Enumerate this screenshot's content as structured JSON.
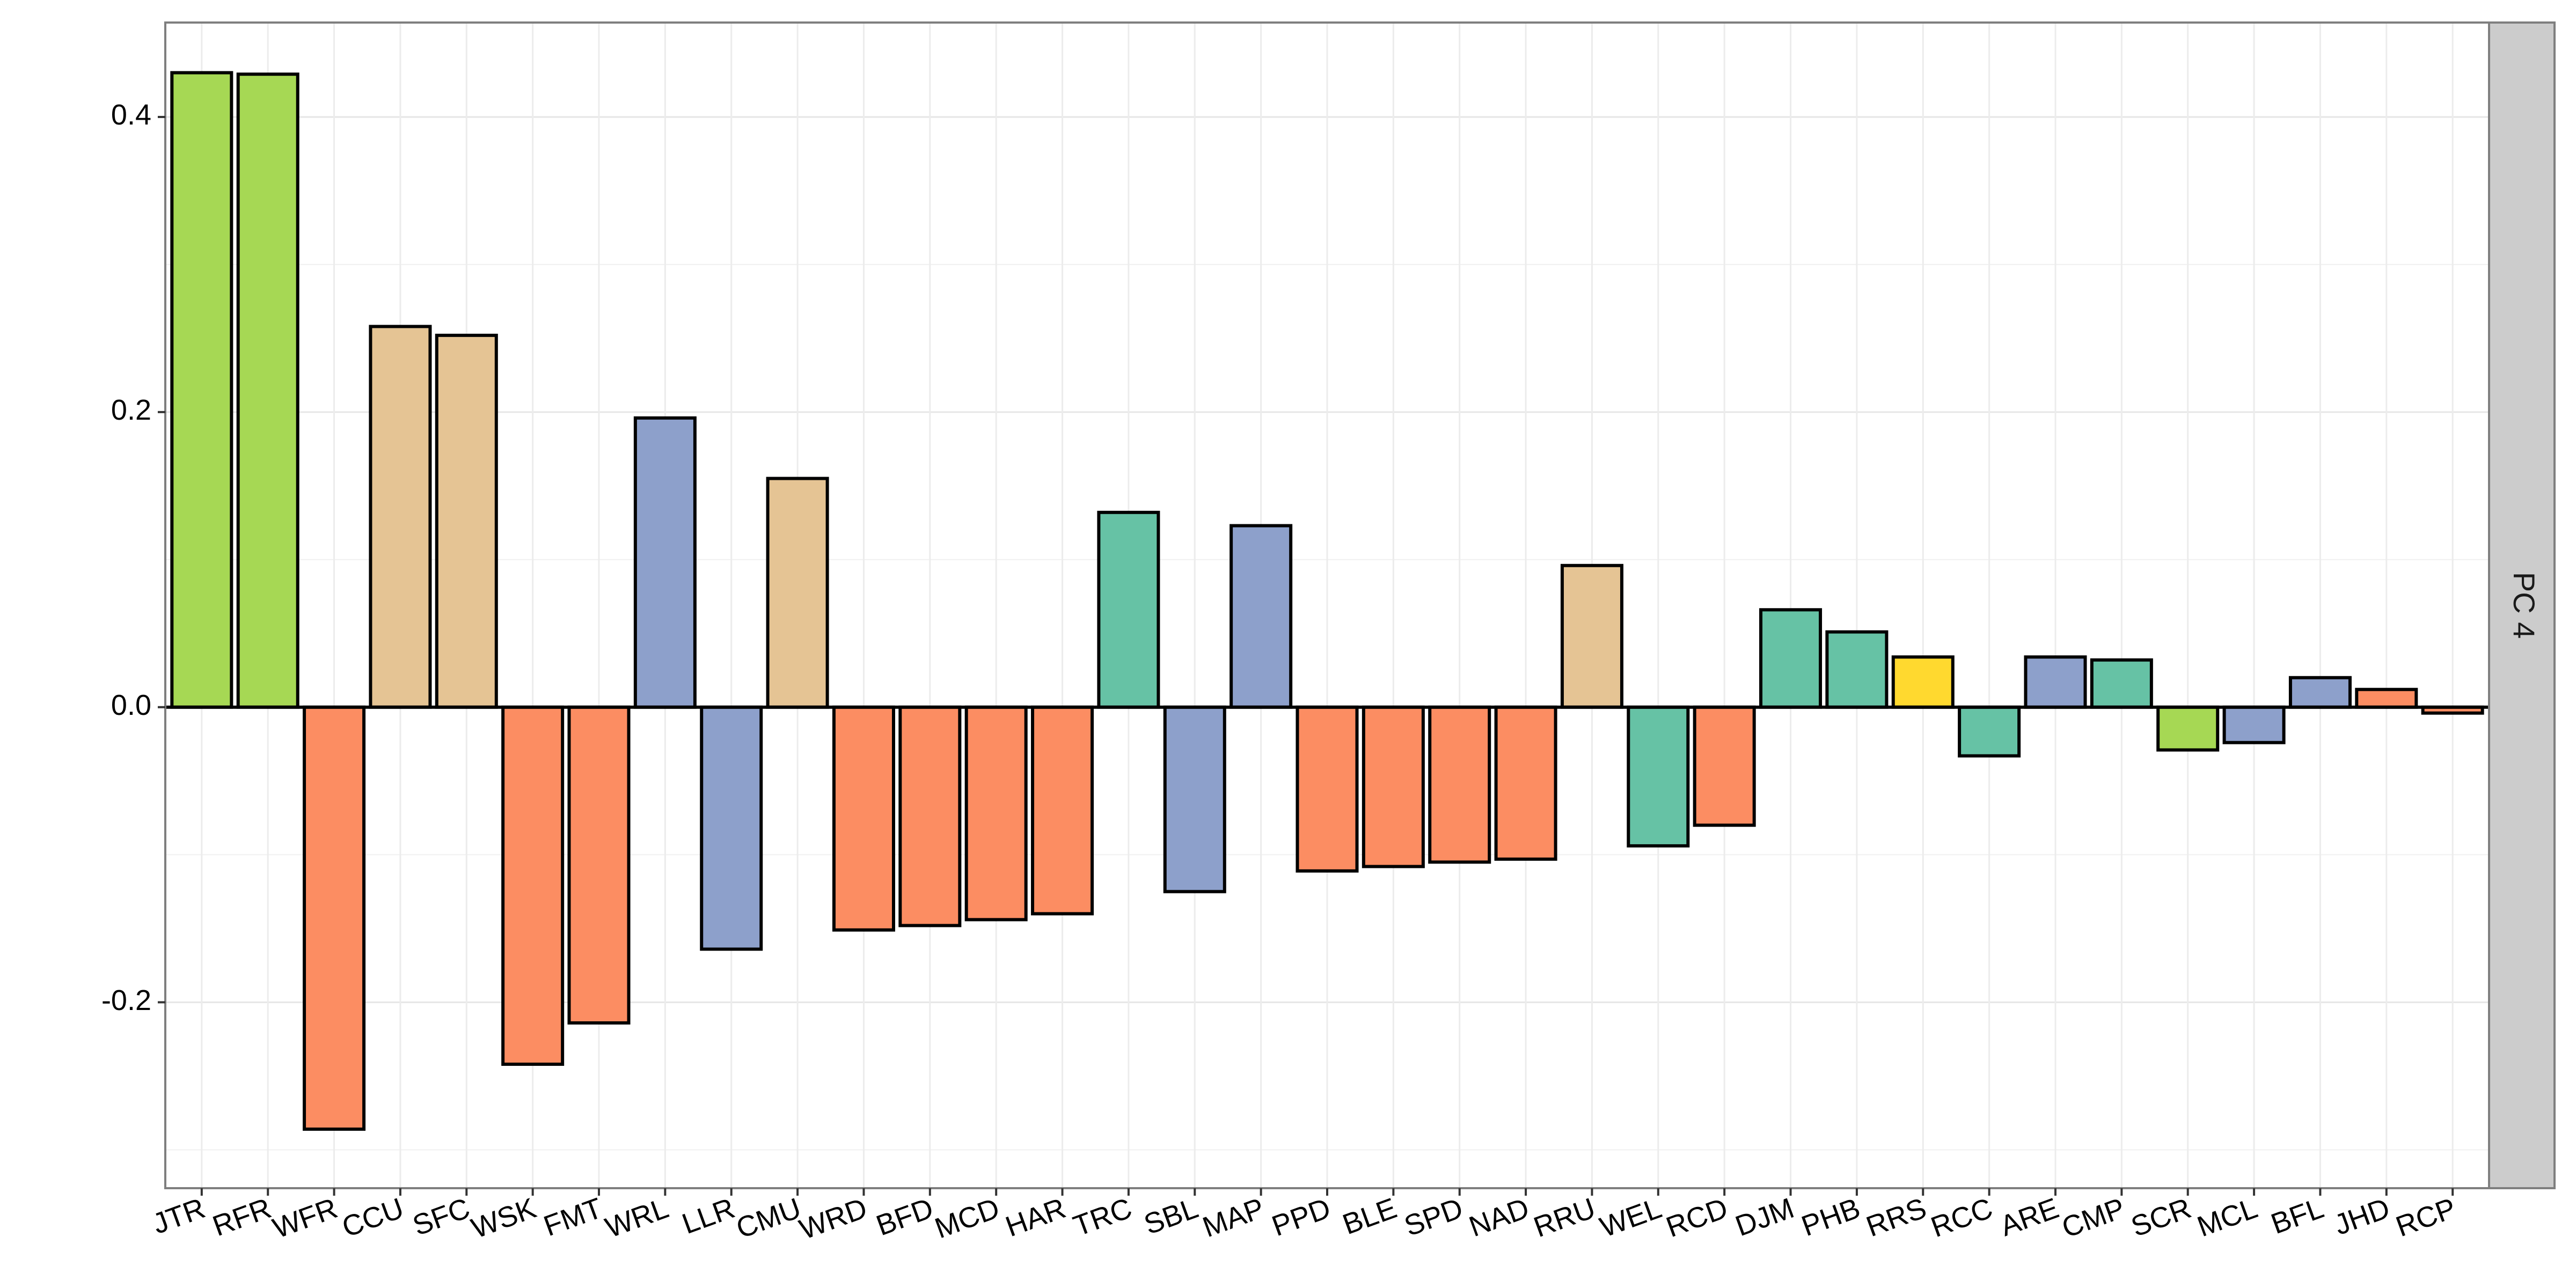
{
  "chart_data": {
    "type": "bar",
    "facet_label": "PC 4",
    "categories": [
      "JTR",
      "RFR",
      "WFR",
      "CCU",
      "SFC",
      "WSK",
      "FMT",
      "WRL",
      "LLR",
      "CMU",
      "WRD",
      "BFD",
      "MCD",
      "HAR",
      "TRC",
      "SBL",
      "MAP",
      "PPD",
      "BLE",
      "SPD",
      "NAD",
      "RRU",
      "WEL",
      "RCD",
      "DJM",
      "PHB",
      "RRS",
      "RCC",
      "ARE",
      "CMP",
      "SCR",
      "MCL",
      "BFL",
      "JHD",
      "RCP"
    ],
    "values": [
      0.43,
      0.429,
      -0.286,
      0.258,
      0.252,
      -0.242,
      -0.214,
      0.196,
      -0.164,
      0.155,
      -0.151,
      -0.148,
      -0.144,
      -0.14,
      0.132,
      -0.125,
      0.123,
      -0.111,
      -0.108,
      -0.105,
      -0.103,
      0.096,
      -0.094,
      -0.08,
      0.066,
      0.051,
      0.034,
      -0.033,
      0.034,
      0.032,
      -0.029,
      -0.024,
      0.02,
      0.012,
      -0.004
    ],
    "colors": [
      "#a6d854",
      "#a6d854",
      "#fc8d62",
      "#e5c494",
      "#e5c494",
      "#fc8d62",
      "#fc8d62",
      "#8da0cb",
      "#8da0cb",
      "#e5c494",
      "#fc8d62",
      "#fc8d62",
      "#fc8d62",
      "#fc8d62",
      "#66c2a5",
      "#8da0cb",
      "#8da0cb",
      "#fc8d62",
      "#fc8d62",
      "#fc8d62",
      "#fc8d62",
      "#e5c494",
      "#66c2a5",
      "#fc8d62",
      "#66c2a5",
      "#66c2a5",
      "#ffd92f",
      "#66c2a5",
      "#8da0cb",
      "#66c2a5",
      "#a6d854",
      "#8da0cb",
      "#8da0cb",
      "#fc8d62",
      "#fc8d62"
    ],
    "yticks": [
      -0.2,
      0.0,
      0.2,
      0.4
    ],
    "ytick_labels": [
      "-0.2",
      "0.0",
      "0.2",
      "0.4"
    ],
    "ylim": [
      -0.326,
      0.464
    ],
    "grid": true,
    "xlabel": "",
    "ylabel": "",
    "title": ""
  }
}
